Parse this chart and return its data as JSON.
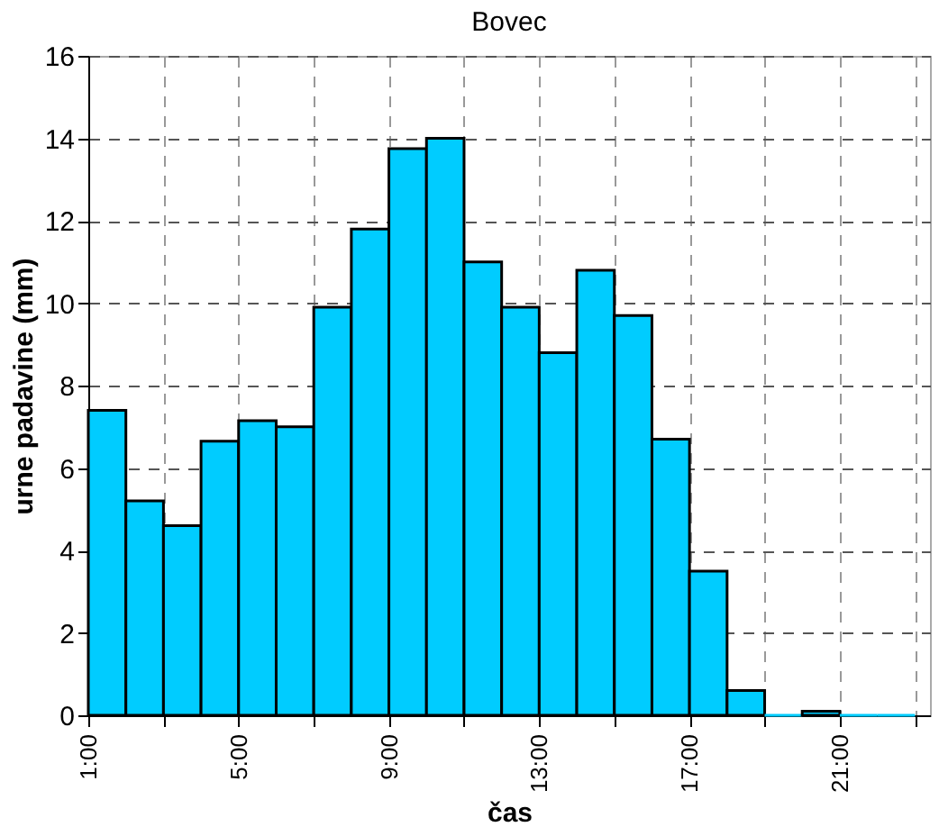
{
  "chart_data": {
    "type": "histogram",
    "title": "Bovec",
    "xlabel": "čas",
    "ylabel": "urne padavine (mm)",
    "bins": [
      1,
      2,
      3,
      4,
      5,
      6,
      7,
      8,
      9,
      10,
      11,
      12,
      13,
      14,
      15,
      16,
      17,
      18,
      19,
      20,
      21,
      22,
      23
    ],
    "values": [
      7.4,
      5.2,
      4.6,
      6.65,
      7.15,
      7.0,
      9.9,
      11.8,
      13.75,
      14.0,
      11.0,
      9.9,
      8.8,
      10.8,
      9.7,
      6.7,
      3.5,
      0.6,
      0,
      0.1,
      0,
      0
    ],
    "color": "#00ccff",
    "xlim": [
      1,
      23.4
    ],
    "xticks": [
      {
        "value": 1,
        "label": "1:00"
      },
      {
        "value": 3,
        "label": null
      },
      {
        "value": 5,
        "label": "5:00"
      },
      {
        "value": 7,
        "label": null
      },
      {
        "value": 9,
        "label": "9:00"
      },
      {
        "value": 11,
        "label": null
      },
      {
        "value": 13,
        "label": "13:00"
      },
      {
        "value": 15,
        "label": null
      },
      {
        "value": 17,
        "label": "17:00"
      },
      {
        "value": 19,
        "label": null
      },
      {
        "value": 21,
        "label": "21:00"
      },
      {
        "value": 23,
        "label": null
      }
    ],
    "ylim": [
      0,
      16
    ],
    "yticks": [
      0,
      2,
      4,
      6,
      8,
      10,
      12,
      14,
      16
    ],
    "grid": true
  }
}
